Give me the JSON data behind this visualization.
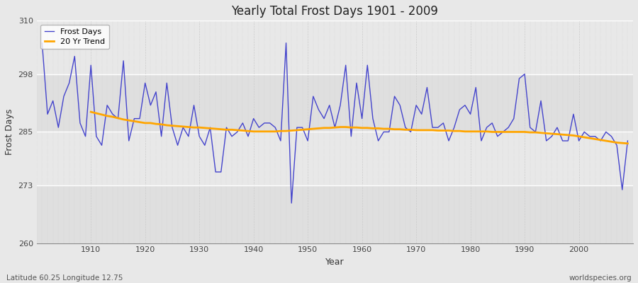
{
  "title": "Yearly Total Frost Days 1901 - 2009",
  "xlabel": "Year",
  "ylabel": "Frost Days",
  "subtitle_left": "Latitude 60.25 Longitude 12.75",
  "subtitle_right": "worldspecies.org",
  "ylim": [
    260,
    310
  ],
  "yticks": [
    260,
    273,
    285,
    298,
    310
  ],
  "fig_bg_color": "#e8e8e8",
  "plot_bg_color": "#e8e8e8",
  "line_color": "#4444cc",
  "trend_color": "#ffa500",
  "years": [
    1901,
    1902,
    1903,
    1904,
    1905,
    1906,
    1907,
    1908,
    1909,
    1910,
    1911,
    1912,
    1913,
    1914,
    1915,
    1916,
    1917,
    1918,
    1919,
    1920,
    1921,
    1922,
    1923,
    1924,
    1925,
    1926,
    1927,
    1928,
    1929,
    1930,
    1931,
    1932,
    1933,
    1934,
    1935,
    1936,
    1937,
    1938,
    1939,
    1940,
    1941,
    1942,
    1943,
    1944,
    1945,
    1946,
    1947,
    1948,
    1949,
    1950,
    1951,
    1952,
    1953,
    1954,
    1955,
    1956,
    1957,
    1958,
    1959,
    1960,
    1961,
    1962,
    1963,
    1964,
    1965,
    1966,
    1967,
    1968,
    1969,
    1970,
    1971,
    1972,
    1973,
    1974,
    1975,
    1976,
    1977,
    1978,
    1979,
    1980,
    1981,
    1982,
    1983,
    1984,
    1985,
    1986,
    1987,
    1988,
    1989,
    1990,
    1991,
    1992,
    1993,
    1994,
    1995,
    1996,
    1997,
    1998,
    1999,
    2000,
    2001,
    2002,
    2003,
    2004,
    2005,
    2006,
    2007,
    2008,
    2009
  ],
  "frost_days": [
    305,
    289,
    292,
    286,
    293,
    296,
    302,
    287,
    284,
    300,
    284,
    282,
    291,
    289,
    288,
    301,
    283,
    288,
    288,
    296,
    291,
    294,
    284,
    296,
    286,
    282,
    286,
    284,
    291,
    284,
    282,
    286,
    276,
    276,
    286,
    284,
    285,
    287,
    284,
    288,
    286,
    287,
    287,
    286,
    283,
    305,
    269,
    286,
    286,
    283,
    293,
    290,
    288,
    291,
    286,
    291,
    300,
    284,
    296,
    288,
    300,
    288,
    283,
    285,
    285,
    293,
    291,
    286,
    285,
    291,
    289,
    295,
    286,
    286,
    287,
    283,
    286,
    290,
    291,
    289,
    295,
    283,
    286,
    287,
    284,
    285,
    286,
    288,
    297,
    298,
    286,
    285,
    292,
    283,
    284,
    286,
    283,
    283,
    289,
    283,
    285,
    284,
    284,
    283,
    285,
    284,
    282,
    272,
    283
  ],
  "trend_years": [
    1910,
    1911,
    1912,
    1913,
    1914,
    1915,
    1916,
    1917,
    1918,
    1919,
    1920,
    1921,
    1922,
    1923,
    1924,
    1925,
    1926,
    1927,
    1928,
    1929,
    1930,
    1931,
    1932,
    1933,
    1934,
    1935,
    1936,
    1937,
    1938,
    1939,
    1940,
    1941,
    1942,
    1943,
    1944,
    1945,
    1946,
    1947,
    1948,
    1949,
    1950,
    1951,
    1952,
    1953,
    1954,
    1955,
    1956,
    1957,
    1958,
    1959,
    1960,
    1961,
    1962,
    1963,
    1964,
    1965,
    1966,
    1967,
    1968,
    1969,
    1970,
    1971,
    1972,
    1973,
    1974,
    1975,
    1976,
    1977,
    1978,
    1979,
    1980,
    1981,
    1982,
    1983,
    1984,
    1985,
    1986,
    1987,
    1988,
    1989,
    1990,
    1991,
    1992,
    1993,
    1994,
    1995,
    1996,
    1997,
    1998,
    1999,
    2000,
    2001,
    2002,
    2003,
    2004,
    2005,
    2006,
    2007,
    2008,
    2009
  ],
  "trend_values": [
    289.5,
    289.2,
    288.9,
    288.6,
    288.4,
    288.1,
    287.8,
    287.6,
    287.4,
    287.2,
    287.0,
    287.0,
    286.8,
    286.7,
    286.5,
    286.4,
    286.3,
    286.2,
    286.1,
    286.0,
    286.0,
    285.9,
    285.8,
    285.7,
    285.6,
    285.5,
    285.5,
    285.4,
    285.3,
    285.2,
    285.1,
    285.1,
    285.1,
    285.1,
    285.1,
    285.2,
    285.2,
    285.3,
    285.4,
    285.5,
    285.6,
    285.7,
    285.8,
    285.9,
    285.9,
    286.0,
    286.1,
    286.1,
    286.0,
    286.0,
    285.9,
    285.9,
    285.8,
    285.8,
    285.7,
    285.7,
    285.6,
    285.6,
    285.5,
    285.5,
    285.4,
    285.4,
    285.4,
    285.4,
    285.3,
    285.3,
    285.3,
    285.2,
    285.2,
    285.1,
    285.1,
    285.1,
    285.1,
    285.1,
    285.0,
    285.0,
    285.0,
    285.0,
    285.0,
    285.0,
    285.0,
    284.9,
    284.9,
    284.8,
    284.7,
    284.6,
    284.5,
    284.4,
    284.3,
    284.2,
    284.0,
    283.8,
    283.6,
    283.4,
    283.2,
    283.0,
    282.8,
    282.6,
    282.5,
    282.4
  ]
}
